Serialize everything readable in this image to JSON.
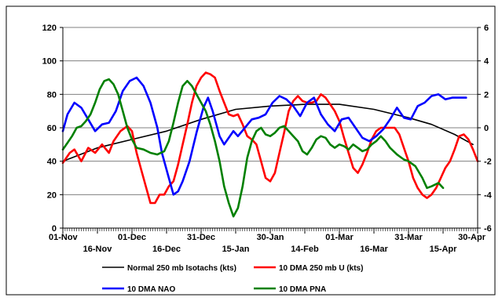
{
  "chart_data": {
    "type": "line",
    "title": "",
    "xlabel": "",
    "ylabel": "",
    "ylim_left": [
      0,
      120
    ],
    "ylim_right": [
      -6,
      6
    ],
    "left_ticks": [
      "0",
      "20",
      "40",
      "60",
      "80",
      "100",
      "120"
    ],
    "right_ticks": [
      "-6",
      "-4",
      "-2",
      "0",
      "2",
      "4",
      "6"
    ],
    "x_ticks_top_row": [
      "01-Nov",
      "01-Dec",
      "31-Dec",
      "30-Jan",
      "01-Mar",
      "31-Mar",
      "30-Apr"
    ],
    "x_ticks_bottom_row": [
      "16-Nov",
      "16-Dec",
      "15-Jan",
      "14-Feb",
      "16-Mar",
      "15-Apr"
    ],
    "x_range_days": [
      0,
      180
    ],
    "grid": "horizontal",
    "legend_position": "bottom",
    "series": [
      {
        "name": "Normal 250 mb Isotachs (kts)",
        "axis": "left",
        "color": "#000000",
        "points": [
          [
            0,
            40
          ],
          [
            15,
            48
          ],
          [
            30,
            53
          ],
          [
            45,
            58
          ],
          [
            60,
            65
          ],
          [
            75,
            71
          ],
          [
            90,
            73
          ],
          [
            105,
            74
          ],
          [
            120,
            74
          ],
          [
            135,
            71
          ],
          [
            150,
            66
          ],
          [
            160,
            62
          ],
          [
            170,
            56
          ],
          [
            178,
            50
          ]
        ]
      },
      {
        "name": "10 DMA 250 mb U (kts)",
        "axis": "left",
        "color": "#ff0000",
        "points": [
          [
            0,
            39
          ],
          [
            3,
            45
          ],
          [
            5,
            47
          ],
          [
            8,
            40
          ],
          [
            11,
            48
          ],
          [
            14,
            45
          ],
          [
            17,
            50
          ],
          [
            20,
            45
          ],
          [
            22,
            52
          ],
          [
            25,
            58
          ],
          [
            28,
            61
          ],
          [
            30,
            58
          ],
          [
            32,
            45
          ],
          [
            34,
            35
          ],
          [
            36,
            25
          ],
          [
            38,
            15
          ],
          [
            40,
            15
          ],
          [
            42,
            20
          ],
          [
            44,
            20
          ],
          [
            46,
            25
          ],
          [
            48,
            28
          ],
          [
            50,
            38
          ],
          [
            52,
            50
          ],
          [
            54,
            62
          ],
          [
            56,
            75
          ],
          [
            58,
            85
          ],
          [
            60,
            90
          ],
          [
            62,
            93
          ],
          [
            64,
            92
          ],
          [
            66,
            90
          ],
          [
            68,
            82
          ],
          [
            70,
            75
          ],
          [
            72,
            68
          ],
          [
            74,
            67
          ],
          [
            76,
            68
          ],
          [
            78,
            62
          ],
          [
            80,
            55
          ],
          [
            82,
            53
          ],
          [
            84,
            50
          ],
          [
            86,
            40
          ],
          [
            88,
            30
          ],
          [
            90,
            28
          ],
          [
            92,
            33
          ],
          [
            94,
            45
          ],
          [
            96,
            57
          ],
          [
            98,
            70
          ],
          [
            100,
            76
          ],
          [
            102,
            79
          ],
          [
            104,
            76
          ],
          [
            106,
            75
          ],
          [
            108,
            75
          ],
          [
            110,
            76
          ],
          [
            112,
            80
          ],
          [
            114,
            78
          ],
          [
            116,
            74
          ],
          [
            118,
            70
          ],
          [
            120,
            64
          ],
          [
            122,
            54
          ],
          [
            124,
            45
          ],
          [
            126,
            36
          ],
          [
            128,
            33
          ],
          [
            130,
            38
          ],
          [
            132,
            45
          ],
          [
            134,
            53
          ],
          [
            136,
            58
          ],
          [
            138,
            60
          ],
          [
            140,
            60
          ],
          [
            142,
            60
          ],
          [
            144,
            60
          ],
          [
            146,
            56
          ],
          [
            148,
            48
          ],
          [
            150,
            40
          ],
          [
            152,
            30
          ],
          [
            154,
            24
          ],
          [
            156,
            20
          ],
          [
            158,
            18
          ],
          [
            160,
            20
          ],
          [
            162,
            24
          ],
          [
            164,
            30
          ],
          [
            166,
            36
          ],
          [
            168,
            40
          ],
          [
            170,
            47
          ],
          [
            172,
            55
          ],
          [
            174,
            56
          ],
          [
            176,
            53
          ],
          [
            178,
            47
          ],
          [
            180,
            40
          ]
        ]
      },
      {
        "name": "10 DMA NAO",
        "axis": "right",
        "color": "#0000ff",
        "points": [
          [
            0,
            -0.2
          ],
          [
            2,
            0.8
          ],
          [
            5,
            1.5
          ],
          [
            8,
            1.2
          ],
          [
            11,
            0.5
          ],
          [
            14,
            -0.2
          ],
          [
            17,
            0.2
          ],
          [
            20,
            0.3
          ],
          [
            23,
            1.0
          ],
          [
            26,
            2.2
          ],
          [
            29,
            2.8
          ],
          [
            32,
            3.0
          ],
          [
            35,
            2.5
          ],
          [
            38,
            1.5
          ],
          [
            41,
            0.0
          ],
          [
            43,
            -1.5
          ],
          [
            46,
            -3.0
          ],
          [
            48,
            -4.0
          ],
          [
            50,
            -3.8
          ],
          [
            52,
            -3.2
          ],
          [
            55,
            -2.0
          ],
          [
            58,
            -0.3
          ],
          [
            61,
            1.2
          ],
          [
            63,
            1.8
          ],
          [
            65,
            1.0
          ],
          [
            68,
            -0.5
          ],
          [
            70,
            -1.0
          ],
          [
            72,
            -0.6
          ],
          [
            74,
            -0.2
          ],
          [
            76,
            -0.5
          ],
          [
            79,
            0.0
          ],
          [
            82,
            0.5
          ],
          [
            85,
            0.6
          ],
          [
            88,
            0.8
          ],
          [
            91,
            1.5
          ],
          [
            94,
            1.9
          ],
          [
            97,
            1.7
          ],
          [
            100,
            1.3
          ],
          [
            103,
            0.7
          ],
          [
            106,
            1.5
          ],
          [
            109,
            1.8
          ],
          [
            112,
            0.8
          ],
          [
            115,
            0.2
          ],
          [
            118,
            -0.2
          ],
          [
            121,
            0.5
          ],
          [
            124,
            0.6
          ],
          [
            127,
            0.0
          ],
          [
            130,
            -0.6
          ],
          [
            133,
            -0.8
          ],
          [
            136,
            -0.5
          ],
          [
            139,
            -0.1
          ],
          [
            142,
            0.5
          ],
          [
            145,
            1.2
          ],
          [
            148,
            0.6
          ],
          [
            151,
            0.5
          ],
          [
            154,
            1.3
          ],
          [
            157,
            1.5
          ],
          [
            160,
            1.9
          ],
          [
            163,
            2.0
          ],
          [
            166,
            1.7
          ],
          [
            169,
            1.8
          ],
          [
            172,
            1.8
          ],
          [
            175,
            1.8
          ]
        ]
      },
      {
        "name": "10 DMA PNA",
        "axis": "right",
        "color": "#008000",
        "points": [
          [
            0,
            -1.3
          ],
          [
            2,
            -0.9
          ],
          [
            4,
            -0.5
          ],
          [
            6,
            0.0
          ],
          [
            8,
            0.1
          ],
          [
            10,
            0.4
          ],
          [
            12,
            0.8
          ],
          [
            14,
            1.5
          ],
          [
            16,
            2.3
          ],
          [
            18,
            2.8
          ],
          [
            20,
            2.9
          ],
          [
            22,
            2.6
          ],
          [
            24,
            2.0
          ],
          [
            26,
            1.0
          ],
          [
            28,
            0.0
          ],
          [
            30,
            -0.7
          ],
          [
            32,
            -1.2
          ],
          [
            35,
            -1.3
          ],
          [
            38,
            -1.5
          ],
          [
            41,
            -1.6
          ],
          [
            44,
            -1.4
          ],
          [
            46,
            -0.8
          ],
          [
            48,
            0.3
          ],
          [
            50,
            1.5
          ],
          [
            52,
            2.5
          ],
          [
            54,
            2.8
          ],
          [
            56,
            2.5
          ],
          [
            58,
            2.0
          ],
          [
            60,
            1.5
          ],
          [
            62,
            1.0
          ],
          [
            64,
            0.2
          ],
          [
            66,
            -0.8
          ],
          [
            68,
            -2.0
          ],
          [
            70,
            -3.5
          ],
          [
            72,
            -4.5
          ],
          [
            74,
            -5.3
          ],
          [
            76,
            -4.8
          ],
          [
            78,
            -3.5
          ],
          [
            80,
            -1.8
          ],
          [
            82,
            -0.8
          ],
          [
            84,
            -0.2
          ],
          [
            86,
            0.0
          ],
          [
            88,
            -0.4
          ],
          [
            90,
            -0.5
          ],
          [
            92,
            -0.3
          ],
          [
            94,
            0.0
          ],
          [
            96,
            0.1
          ],
          [
            98,
            -0.2
          ],
          [
            100,
            -0.5
          ],
          [
            102,
            -0.8
          ],
          [
            104,
            -1.4
          ],
          [
            106,
            -1.6
          ],
          [
            108,
            -1.2
          ],
          [
            110,
            -0.7
          ],
          [
            112,
            -0.5
          ],
          [
            114,
            -0.6
          ],
          [
            116,
            -1.0
          ],
          [
            118,
            -1.2
          ],
          [
            120,
            -1.0
          ],
          [
            122,
            -1.1
          ],
          [
            124,
            -1.3
          ],
          [
            126,
            -1.0
          ],
          [
            128,
            -1.2
          ],
          [
            130,
            -1.4
          ],
          [
            132,
            -1.3
          ],
          [
            134,
            -1.0
          ],
          [
            136,
            -0.8
          ],
          [
            138,
            -0.5
          ],
          [
            140,
            -0.8
          ],
          [
            142,
            -1.2
          ],
          [
            145,
            -1.6
          ],
          [
            148,
            -1.9
          ],
          [
            150,
            -2.0
          ],
          [
            153,
            -2.3
          ],
          [
            156,
            -3.0
          ],
          [
            158,
            -3.6
          ],
          [
            160,
            -3.5
          ],
          [
            163,
            -3.3
          ],
          [
            165,
            -3.6
          ]
        ]
      }
    ]
  }
}
